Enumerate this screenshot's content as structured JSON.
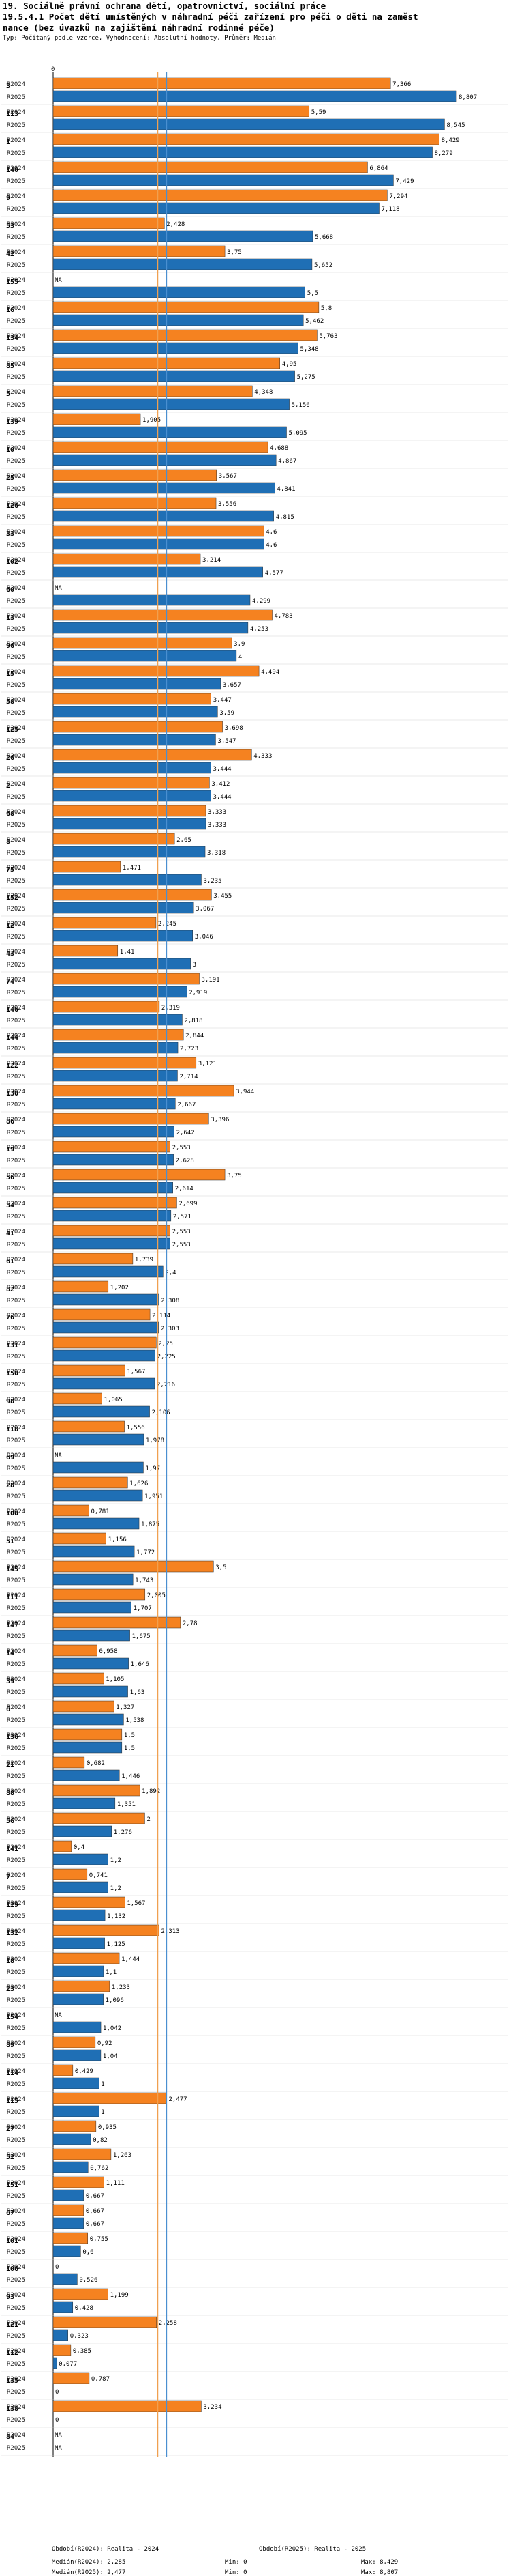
{
  "chart_data": {
    "type": "bar",
    "orientation": "horizontal",
    "title_line1": "19. Sociálně právní ochrana dětí, opatrovnictví, sociální práce",
    "title_line2": "19.5.4.1 Počet dětí umístěných v náhradní péči zařízení pro péči o děti na zaměst",
    "title_line3": "nance (bez úvazků na zajištění náhradní rodinné péče)",
    "subtitle": "Typ: Počítaný podle vzorce, Vyhodnocení: Absolutní hodnoty, Průměr: Medián",
    "series": [
      {
        "name": "R2024",
        "color": "#f58220"
      },
      {
        "name": "R2025",
        "color": "#1f6fb5"
      }
    ],
    "x_max": 9.0,
    "median_2024": 2.285,
    "median_2025": 2.477,
    "rows": [
      {
        "id": "3",
        "v2024": 7.366,
        "v2025": 8.807
      },
      {
        "id": "113",
        "v2024": 5.59,
        "v2025": 8.545
      },
      {
        "id": "1",
        "v2024": 8.429,
        "v2025": 8.279
      },
      {
        "id": "140",
        "v2024": 6.864,
        "v2025": 7.429
      },
      {
        "id": "9",
        "v2024": 7.294,
        "v2025": 7.118
      },
      {
        "id": "53",
        "v2024": 2.428,
        "v2025": 5.668
      },
      {
        "id": "42",
        "v2024": 3.75,
        "v2025": 5.652
      },
      {
        "id": "155",
        "v2024": null,
        "v2025": 5.5
      },
      {
        "id": "16",
        "v2024": 5.8,
        "v2025": 5.462
      },
      {
        "id": "134",
        "v2024": 5.763,
        "v2025": 5.348
      },
      {
        "id": "85",
        "v2024": 4.95,
        "v2025": 5.275
      },
      {
        "id": "5",
        "v2024": 4.348,
        "v2025": 5.156
      },
      {
        "id": "139",
        "v2024": 1.905,
        "v2025": 5.095
      },
      {
        "id": "10",
        "v2024": 4.688,
        "v2025": 4.867
      },
      {
        "id": "25",
        "v2024": 3.567,
        "v2025": 4.841
      },
      {
        "id": "126",
        "v2024": 3.556,
        "v2025": 4.815
      },
      {
        "id": "33",
        "v2024": 4.6,
        "v2025": 4.6
      },
      {
        "id": "102",
        "v2024": 3.214,
        "v2025": 4.577
      },
      {
        "id": "60",
        "v2024": null,
        "v2025": 4.299
      },
      {
        "id": "13",
        "v2024": 4.783,
        "v2025": 4.253
      },
      {
        "id": "96",
        "v2024": 3.9,
        "v2025": 4
      },
      {
        "id": "15",
        "v2024": 4.494,
        "v2025": 3.657
      },
      {
        "id": "58",
        "v2024": 3.447,
        "v2025": 3.59
      },
      {
        "id": "125",
        "v2024": 3.698,
        "v2025": 3.547
      },
      {
        "id": "26",
        "v2024": 4.333,
        "v2025": 3.444
      },
      {
        "id": "2",
        "v2024": 3.412,
        "v2025": 3.444
      },
      {
        "id": "68",
        "v2024": 3.333,
        "v2025": 3.333
      },
      {
        "id": "8",
        "v2024": 2.65,
        "v2025": 3.318
      },
      {
        "id": "75",
        "v2024": 1.471,
        "v2025": 3.235
      },
      {
        "id": "152",
        "v2024": 3.455,
        "v2025": 3.067
      },
      {
        "id": "12",
        "v2024": 2.245,
        "v2025": 3.046
      },
      {
        "id": "43",
        "v2024": 1.41,
        "v2025": 3
      },
      {
        "id": "74",
        "v2024": 3.191,
        "v2025": 2.919
      },
      {
        "id": "146",
        "v2024": 2.319,
        "v2025": 2.818
      },
      {
        "id": "144",
        "v2024": 2.844,
        "v2025": 2.723
      },
      {
        "id": "122",
        "v2024": 3.121,
        "v2025": 2.714
      },
      {
        "id": "130",
        "v2024": 3.944,
        "v2025": 2.667
      },
      {
        "id": "86",
        "v2024": 3.396,
        "v2025": 2.642
      },
      {
        "id": "19",
        "v2024": 2.553,
        "v2025": 2.628
      },
      {
        "id": "56",
        "v2024": 3.75,
        "v2025": 2.614
      },
      {
        "id": "34",
        "v2024": 2.699,
        "v2025": 2.571
      },
      {
        "id": "41",
        "v2024": 2.553,
        "v2025": 2.553
      },
      {
        "id": "61",
        "v2024": 1.739,
        "v2025": 2.4
      },
      {
        "id": "82",
        "v2024": 1.202,
        "v2025": 2.308
      },
      {
        "id": "76",
        "v2024": 2.114,
        "v2025": 2.303
      },
      {
        "id": "131",
        "v2024": 2.25,
        "v2025": 2.225
      },
      {
        "id": "150",
        "v2024": 1.567,
        "v2025": 2.216
      },
      {
        "id": "98",
        "v2024": 1.065,
        "v2025": 2.106
      },
      {
        "id": "118",
        "v2024": 1.556,
        "v2025": 1.978
      },
      {
        "id": "69",
        "v2024": null,
        "v2025": 1.97
      },
      {
        "id": "28",
        "v2024": 1.626,
        "v2025": 1.951
      },
      {
        "id": "100",
        "v2024": 0.781,
        "v2025": 1.875
      },
      {
        "id": "51",
        "v2024": 1.156,
        "v2025": 1.772
      },
      {
        "id": "145",
        "v2024": 3.5,
        "v2025": 1.743
      },
      {
        "id": "111",
        "v2024": 2.005,
        "v2025": 1.707
      },
      {
        "id": "147",
        "v2024": 2.78,
        "v2025": 1.675
      },
      {
        "id": "14",
        "v2024": 0.958,
        "v2025": 1.646
      },
      {
        "id": "39",
        "v2024": 1.105,
        "v2025": 1.63
      },
      {
        "id": "6",
        "v2024": 1.327,
        "v2025": 1.538
      },
      {
        "id": "136",
        "v2024": 1.5,
        "v2025": 1.5
      },
      {
        "id": "21",
        "v2024": 0.682,
        "v2025": 1.446
      },
      {
        "id": "88",
        "v2024": 1.892,
        "v2025": 1.351
      },
      {
        "id": "56b",
        "label": "56",
        "v2024": 2,
        "v2025": 1.276
      },
      {
        "id": "141",
        "v2024": 0.4,
        "v2025": 1.2
      },
      {
        "id": "7",
        "v2024": 0.741,
        "v2025": 1.2
      },
      {
        "id": "129",
        "v2024": 1.567,
        "v2025": 1.132
      },
      {
        "id": "132",
        "v2024": 2.313,
        "v2025": 1.125
      },
      {
        "id": "18",
        "v2024": 1.444,
        "v2025": 1.1
      },
      {
        "id": "23",
        "v2024": 1.233,
        "v2025": 1.096
      },
      {
        "id": "154",
        "v2024": null,
        "v2025": 1.042
      },
      {
        "id": "89",
        "v2024": 0.92,
        "v2025": 1.04
      },
      {
        "id": "114",
        "v2024": 0.429,
        "v2025": 1
      },
      {
        "id": "115",
        "v2024": 2.477,
        "v2025": 1
      },
      {
        "id": "27",
        "v2024": 0.935,
        "v2025": 0.82
      },
      {
        "id": "52",
        "v2024": 1.263,
        "v2025": 0.762
      },
      {
        "id": "151",
        "v2024": 1.111,
        "v2025": 0.667
      },
      {
        "id": "67",
        "v2024": 0.667,
        "v2025": 0.667
      },
      {
        "id": "101",
        "v2024": 0.755,
        "v2025": 0.6
      },
      {
        "id": "106",
        "v2024": 0,
        "v2025": 0.526
      },
      {
        "id": "93",
        "v2024": 1.199,
        "v2025": 0.428
      },
      {
        "id": "121",
        "v2024": 2.258,
        "v2025": 0.323
      },
      {
        "id": "112",
        "v2024": 0.385,
        "v2025": 0.077
      },
      {
        "id": "135",
        "v2024": 0.787,
        "v2025": 0
      },
      {
        "id": "138",
        "v2024": 3.234,
        "v2025": 0
      },
      {
        "id": "84",
        "v2024": null,
        "v2025": null
      }
    ]
  },
  "footer": {
    "legend_2024": "Období(R2024): Realita - 2024",
    "legend_2025": "Období(R2025): Realita - 2025",
    "median_2024_label": "Medián(R2024): 2,285",
    "median_2025_label": "Medián(R2025): 2,477",
    "min_2024_label": "Min: 0",
    "min_2025_label": "Min: 0",
    "max_2024_label": "Max: 8,429",
    "max_2025_label": "Max: 8,807"
  },
  "labels": {
    "na": "NA",
    "axis_zero": "0"
  }
}
